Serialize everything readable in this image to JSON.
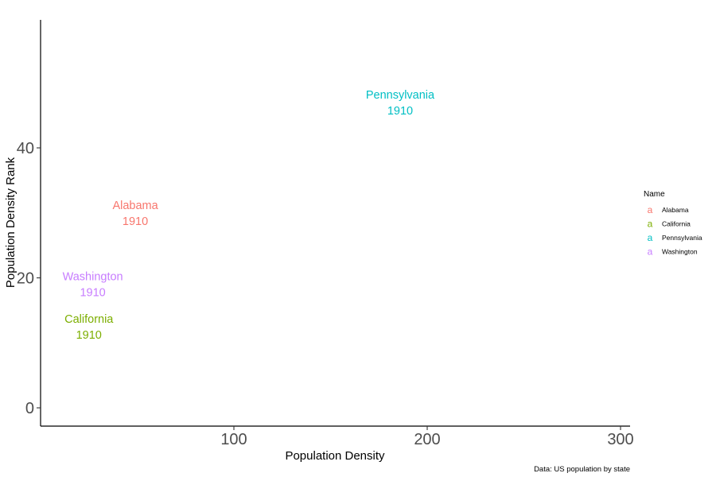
{
  "chart_data": {
    "type": "scatter",
    "title": "",
    "xlabel": "Population Density",
    "ylabel": "Population Density Rank",
    "caption": "Data: US population by state",
    "xlim": [
      0,
      305
    ],
    "ylim": [
      -3,
      60
    ],
    "x_ticks": [
      100,
      200,
      300
    ],
    "y_ticks": [
      0,
      20,
      40
    ],
    "grid": false,
    "legend": {
      "title": "Name",
      "placement": "right"
    },
    "series": [
      {
        "name": "Alabama",
        "color": "#F8766D",
        "x": 49,
        "y": 30,
        "year": "1910"
      },
      {
        "name": "California",
        "color": "#7CAE00",
        "x": 25,
        "y": 12.5,
        "year": "1910"
      },
      {
        "name": "Pennsylvania",
        "color": "#00BFC4",
        "x": 186,
        "y": 47,
        "year": "1910"
      },
      {
        "name": "Washington",
        "color": "#C77CFF",
        "x": 27,
        "y": 19,
        "year": "1910"
      }
    ]
  }
}
